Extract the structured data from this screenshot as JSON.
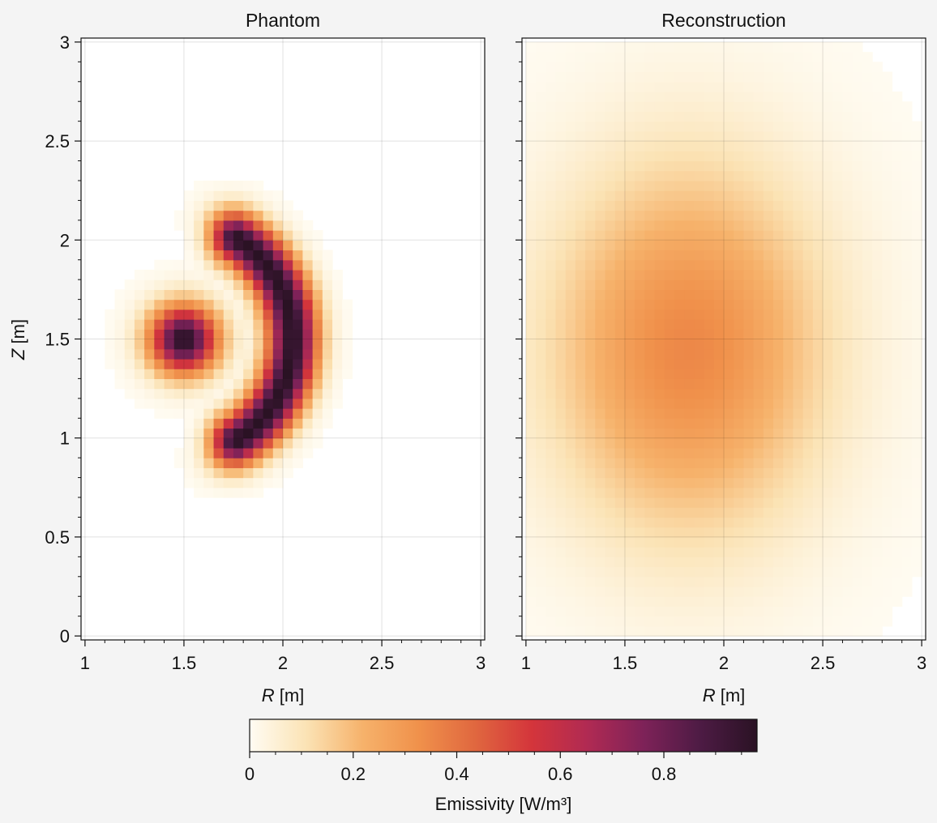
{
  "chart_data": [
    {
      "type": "heatmap",
      "title": "Phantom",
      "xlabel_var": "R",
      "xlabel_unit": " [m]",
      "ylabel_var": "Z",
      "ylabel_unit": " [m]",
      "xlim": [
        0.98,
        3.02
      ],
      "ylim": [
        -0.02,
        3.02
      ],
      "xticks": [
        1,
        1.5,
        2,
        2.5,
        3
      ],
      "xtick_labels": [
        "1",
        "1.5",
        "2",
        "2.5",
        "3"
      ],
      "yticks": [
        0,
        0.5,
        1,
        1.5,
        2,
        2.5,
        3
      ],
      "ytick_labels": [
        "0",
        "0.5",
        "1",
        "1.5",
        "2",
        "2.5",
        "3"
      ],
      "grid": true,
      "grid_resolution_m": 0.05,
      "peak_value": 0.98,
      "features": [
        {
          "kind": "gaussian_blob",
          "center_R": 1.5,
          "center_Z": 1.5,
          "sigma_m": 0.12,
          "peak": 0.98
        },
        {
          "kind": "crescent_ring",
          "center_R": 1.45,
          "center_Z": 1.5,
          "radius_m": 0.6,
          "width_sigma_m": 0.09,
          "half_angle_deg": 58,
          "peak": 0.98
        }
      ]
    },
    {
      "type": "heatmap",
      "title": "Reconstruction",
      "xlabel_var": "R",
      "xlabel_unit": " [m]",
      "xlim": [
        0.98,
        3.02
      ],
      "ylim": [
        -0.02,
        3.02
      ],
      "xticks": [
        1,
        1.5,
        2,
        2.5,
        3
      ],
      "xtick_labels": [
        "1",
        "1.5",
        "2",
        "2.5",
        "3"
      ],
      "yticks": [
        0,
        0.5,
        1,
        1.5,
        2,
        2.5,
        3
      ],
      "grid": true,
      "grid_resolution_m": 0.05,
      "peak_value": 0.35,
      "features": [
        {
          "kind": "broad_gaussian",
          "center_R": 1.82,
          "center_Z": 1.45,
          "sigma_R_m": 0.48,
          "sigma_Z_m": 0.65,
          "peak": 0.35
        }
      ]
    }
  ],
  "colorbar": {
    "label": "Emissivity [W/m³]",
    "vmin": 0,
    "vmax": 0.98,
    "ticks": [
      0,
      0.2,
      0.4,
      0.6,
      0.8
    ],
    "tick_labels": [
      "0",
      "0.2",
      "0.4",
      "0.6",
      "0.8"
    ],
    "colormap": "rocket_r",
    "colormap_stops": [
      "#fffcf3",
      "#fbe3b5",
      "#f6b26b",
      "#f0914b",
      "#e0673f",
      "#d4353b",
      "#b02a53",
      "#7d2258",
      "#4d1b44",
      "#2a1224"
    ]
  }
}
